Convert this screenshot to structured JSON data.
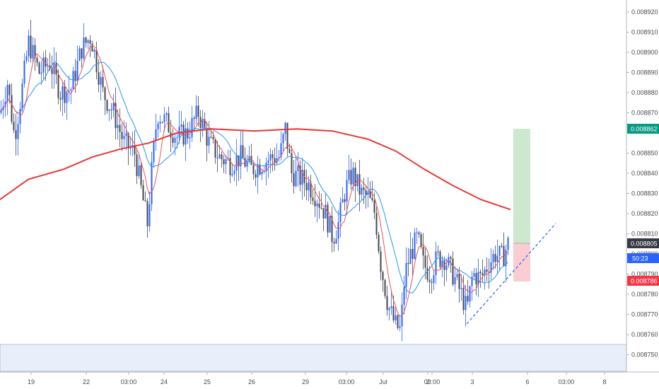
{
  "chart_data": {
    "type": "candlestick",
    "title": "",
    "xlabel": "",
    "ylabel": "",
    "ylim": [
      0.00874,
      0.00922
    ],
    "y_ticks": [
      "0.008750",
      "0.008760",
      "0.008770",
      "0.008780",
      "0.008790",
      "0.008800",
      "0.008810",
      "0.008820",
      "0.008830",
      "0.008840",
      "0.008850",
      "0.008870",
      "0.008880",
      "0.008890",
      "0.008900",
      "0.008910",
      "0.008920"
    ],
    "x_ticks": [
      "19",
      "22",
      "03:00",
      "24",
      "25",
      "26",
      "29",
      "03:00",
      "Jul",
      "2",
      "03:00",
      "3",
      "6",
      "03:00",
      "8"
    ],
    "price_labels": {
      "target": {
        "text": "0.008862",
        "value": 0.008862,
        "color": "#089981"
      },
      "current": {
        "text": "0.008805",
        "value": 0.008805,
        "color": "#363a45"
      },
      "countdown": {
        "text": "50:23",
        "color": "#2962ff"
      },
      "stop": {
        "text": "0.008786",
        "value": 0.008786,
        "color": "#f23645"
      }
    },
    "position_tool": {
      "entry": 0.008805,
      "target": 0.008862,
      "stop": 0.008786,
      "reward_color": "#c8e6c9",
      "risk_color": "#f8c8cc"
    },
    "support_zone": {
      "from": 0.00874,
      "to": 0.008754,
      "color": "#e8eefa"
    },
    "trendline": {
      "from": [
        0.00877,
        "3"
      ],
      "to": [
        0.00881,
        "6"
      ],
      "style": "dashed",
      "color": "#2962ff"
    },
    "series": [
      {
        "name": "",
        "kind": "ma200",
        "color": "#e53935"
      },
      {
        "name": "",
        "kind": "ma50",
        "color": "#2196f3"
      },
      {
        "name": "",
        "kind": "ma20",
        "color": "#ef5350"
      }
    ],
    "colors": {
      "up": "#2962ff",
      "down": "#434651",
      "bg": "#ffffff",
      "grid": "#f0f3fa"
    }
  }
}
